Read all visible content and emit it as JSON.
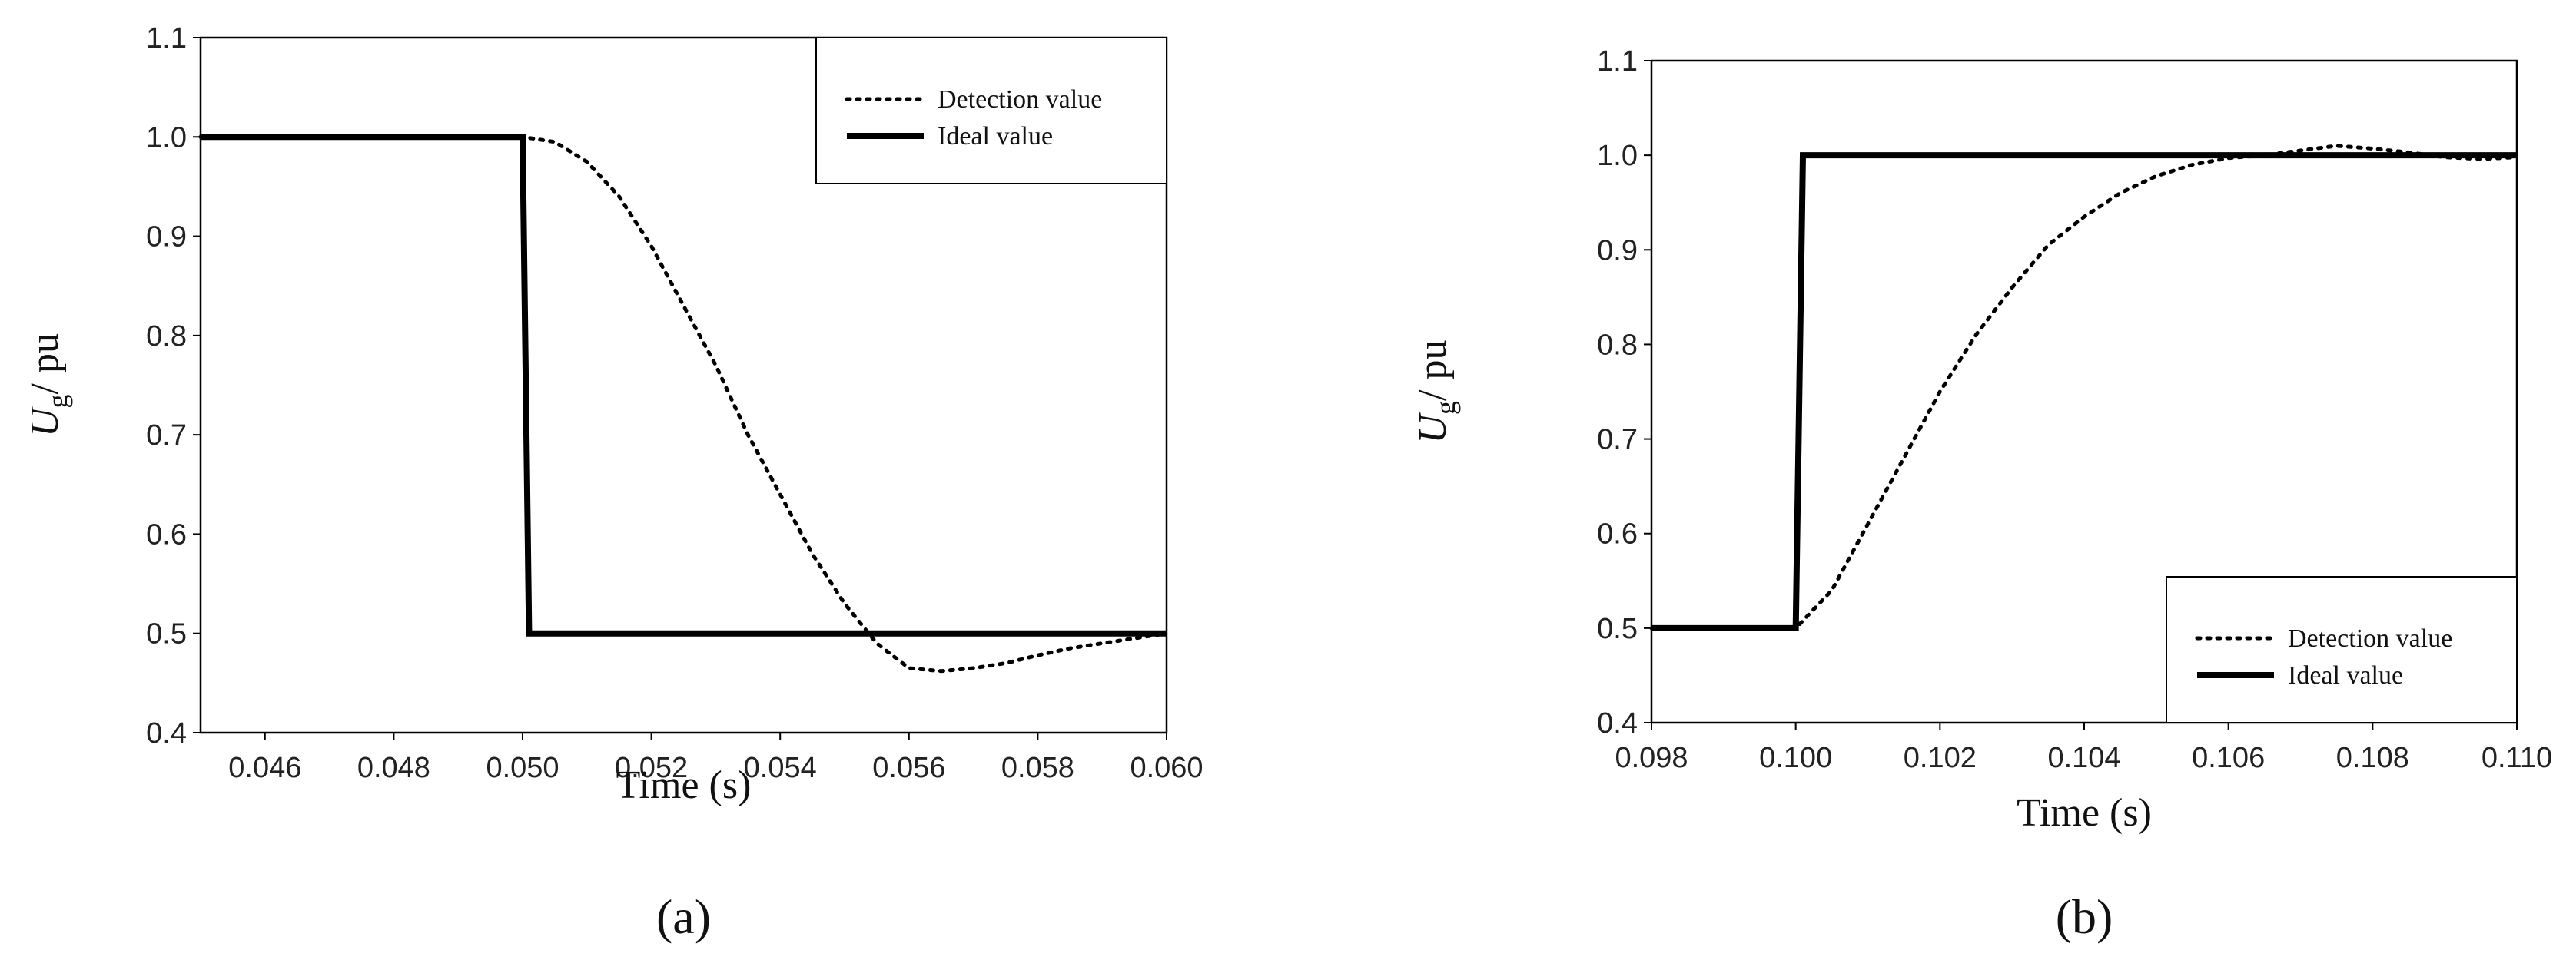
{
  "chart_data": [
    {
      "type": "line",
      "panel_label": "(a)",
      "xlabel": "Time (s)",
      "ylabel_symbol": "U",
      "ylabel_subscript": "g",
      "ylabel_unit": "/ pu",
      "xlim": [
        0.045,
        0.06
      ],
      "ylim": [
        0.4,
        1.1
      ],
      "xticks": [
        0.046,
        0.048,
        {
          "value": 0.05,
          "label": "0.050"
        },
        0.052,
        0.054,
        0.056,
        0.058,
        {
          "value": 0.06,
          "label": "0.060"
        }
      ],
      "yticks": [
        0.4,
        0.5,
        0.6,
        0.7,
        0.8,
        0.9,
        {
          "value": 1,
          "label": "1.0"
        },
        1.1
      ],
      "legend": "upper right",
      "series": [
        {
          "name": "Detection value",
          "color": "#000000",
          "style": "dotted",
          "x": [
            0.045,
            0.05,
            0.0505,
            0.051,
            0.0515,
            0.052,
            0.0525,
            0.053,
            0.0535,
            0.054,
            0.0545,
            0.055,
            0.0555,
            0.056,
            0.0565,
            0.057,
            0.0575,
            0.058,
            0.0585,
            0.059,
            0.0595,
            0.06
          ],
          "values": [
            1.0,
            1.0,
            0.995,
            0.975,
            0.94,
            0.89,
            0.83,
            0.77,
            0.7,
            0.64,
            0.58,
            0.53,
            0.49,
            0.465,
            0.462,
            0.465,
            0.47,
            0.478,
            0.485,
            0.49,
            0.495,
            0.5
          ]
        },
        {
          "name": "Ideal value",
          "color": "#000000",
          "style": "solid",
          "x": [
            0.045,
            0.05,
            0.0501,
            0.06
          ],
          "values": [
            1.0,
            1.0,
            0.5,
            0.5
          ]
        }
      ]
    },
    {
      "type": "line",
      "panel_label": "(b)",
      "xlabel": "Time (s)",
      "ylabel_symbol": "U",
      "ylabel_subscript": "g",
      "ylabel_unit": "/ pu",
      "xlim": [
        0.098,
        0.11
      ],
      "ylim": [
        0.4,
        1.1
      ],
      "xticks": [
        0.098,
        {
          "value": 0.1,
          "label": "0.100"
        },
        0.102,
        0.104,
        0.106,
        0.108,
        {
          "value": 0.11,
          "label": "0.110"
        }
      ],
      "yticks": [
        0.4,
        0.5,
        0.6,
        0.7,
        0.8,
        0.9,
        {
          "value": 1,
          "label": "1.0"
        },
        1.1
      ],
      "legend": "lower right",
      "series": [
        {
          "name": "Detection value",
          "color": "#000000",
          "style": "dotted",
          "x": [
            0.098,
            0.1,
            0.1005,
            0.101,
            0.1015,
            0.102,
            0.1025,
            0.103,
            0.1035,
            0.104,
            0.1045,
            0.105,
            0.1055,
            0.106,
            0.1065,
            0.107,
            0.1075,
            0.108,
            0.1085,
            0.109,
            0.1095,
            0.11
          ],
          "values": [
            0.5,
            0.5,
            0.54,
            0.61,
            0.68,
            0.75,
            0.81,
            0.86,
            0.905,
            0.935,
            0.96,
            0.978,
            0.99,
            0.997,
            1.0,
            1.005,
            1.01,
            1.007,
            1.003,
            0.998,
            0.996,
            0.998
          ]
        },
        {
          "name": "Ideal value",
          "color": "#000000",
          "style": "solid",
          "x": [
            0.098,
            0.1,
            0.1001,
            0.11
          ],
          "values": [
            0.5,
            0.5,
            1.0,
            1.0
          ]
        }
      ]
    }
  ]
}
